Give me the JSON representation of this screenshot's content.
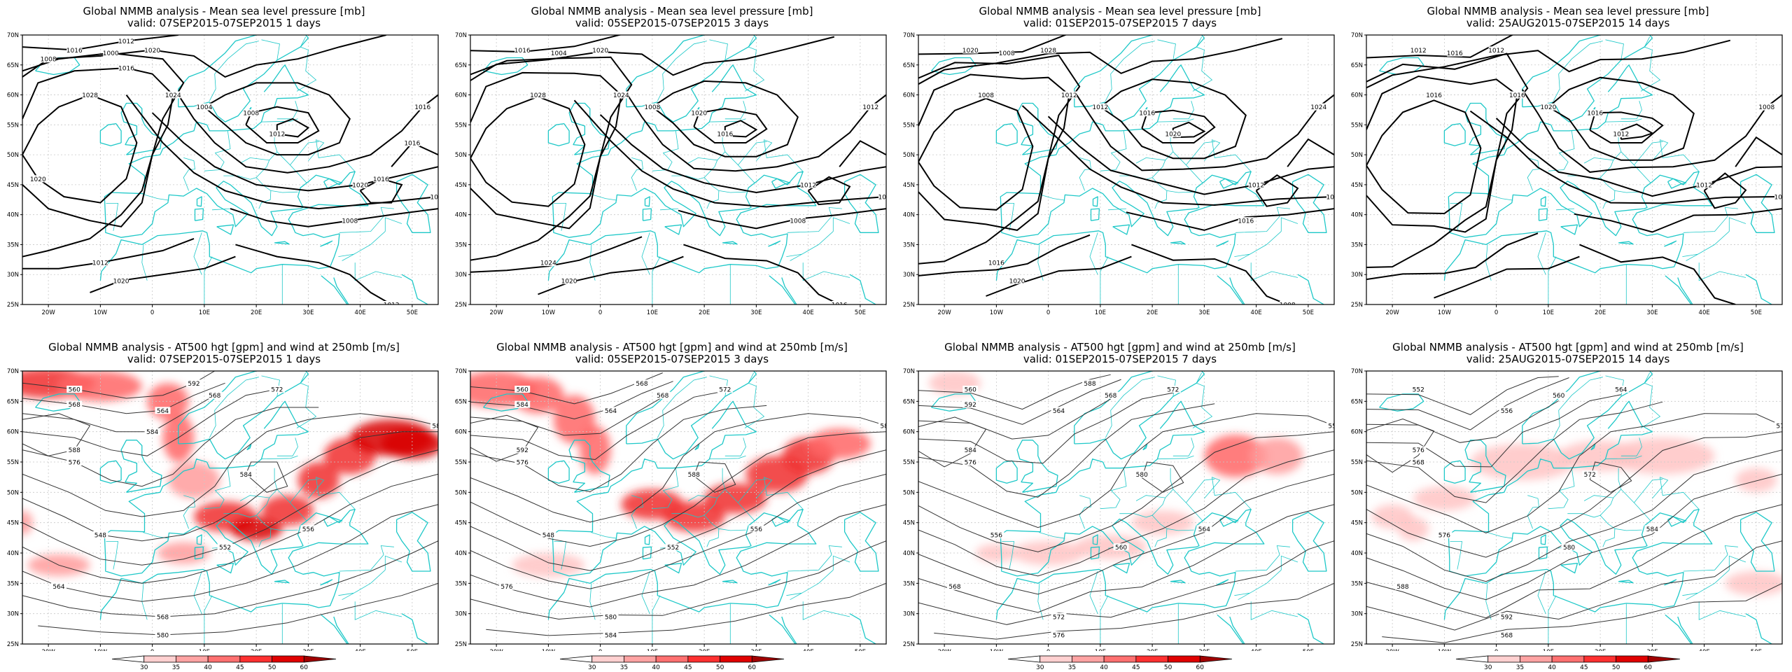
{
  "coast_color": "#1ec8c8",
  "contour_color": "#000000",
  "axes": {
    "lat_ticks": [
      "70N",
      "65N",
      "60N",
      "55N",
      "50N",
      "45N",
      "40N",
      "35N",
      "30N",
      "25N"
    ],
    "lon_ticks": [
      "20W",
      "10W",
      "0",
      "10E",
      "20E",
      "30E",
      "40E",
      "50E"
    ]
  },
  "legend": {
    "labels": [
      "30",
      "35",
      "40",
      "45",
      "50",
      "60"
    ],
    "colors": [
      "#ffffff",
      "#ffd0d0",
      "#ffa3a3",
      "#ff7070",
      "#ff3030",
      "#e00000",
      "#a00000"
    ]
  },
  "panels": [
    {
      "title": "Global NMMB analysis - Mean sea level pressure [mb]",
      "subtitle": "valid: 07SEP2015-07SEP2015   1 days",
      "labels": [
        "1016",
        "1020",
        "1024",
        "1028",
        "1000",
        "1004",
        "1008",
        "1012",
        "1016",
        "1020",
        "1024",
        "1008",
        "1012",
        "1012",
        "1020",
        "1016",
        "1016",
        "1012",
        "1008",
        "1016",
        "1020"
      ]
    },
    {
      "title": "Global NMMB analysis - Mean sea level pressure [mb]",
      "subtitle": "valid: 05SEP2015-07SEP2015   3 days",
      "labels": [
        "1016",
        "1020",
        "1024",
        "1028",
        "1004",
        "1008",
        "1020",
        "1016",
        "1012",
        "1012",
        "1012",
        "1008",
        "1016",
        "1024",
        "1020"
      ]
    },
    {
      "title": "Global NMMB analysis - Mean sea level pressure [mb]",
      "subtitle": "valid: 01SEP2015-07SEP2015   7 days",
      "labels": [
        "1020",
        "1028",
        "1012",
        "1008",
        "1008",
        "1012",
        "1016",
        "1020",
        "1024",
        "1012",
        "1016",
        "1016",
        "1008",
        "1016",
        "1020"
      ]
    },
    {
      "title": "Global NMMB analysis - Mean sea level pressure [mb]",
      "subtitle": "valid: 25AUG2015-07SEP2015   14 days",
      "labels": [
        "1012",
        "1012",
        "1016",
        "1016",
        "1016",
        "1020",
        "1016",
        "1012",
        "1008",
        "1012",
        "1016"
      ]
    },
    {
      "title": "Global NMMB analysis - AT500 hgt [gpm] and wind at 250mb [m/s]",
      "subtitle": "valid: 07SEP2015-07SEP2015   1 days",
      "labels": [
        "560",
        "564",
        "568",
        "572",
        "576",
        "580",
        "548",
        "552",
        "556",
        "564",
        "568",
        "580",
        "584",
        "588",
        "592",
        "568",
        "584"
      ]
    },
    {
      "title": "Global NMMB analysis - AT500 hgt [gpm] and wind at 250mb [m/s]",
      "subtitle": "valid: 05SEP2015-07SEP2015   3 days",
      "labels": [
        "560",
        "564",
        "568",
        "572",
        "576",
        "580",
        "548",
        "552",
        "556",
        "576",
        "580",
        "584",
        "588",
        "592",
        "568",
        "584"
      ]
    },
    {
      "title": "Global NMMB analysis - AT500 hgt [gpm] and wind at 250mb [m/s]",
      "subtitle": "valid: 01SEP2015-07SEP2015   7 days",
      "labels": [
        "560",
        "564",
        "568",
        "572",
        "576",
        "552",
        "556",
        "560",
        "564",
        "568",
        "572",
        "576",
        "580",
        "584",
        "588",
        "592"
      ]
    },
    {
      "title": "Global NMMB analysis - AT500 hgt [gpm] and wind at 250mb [m/s]",
      "subtitle": "valid: 25AUG2015-07SEP2015   14 days",
      "labels": [
        "552",
        "556",
        "560",
        "564",
        "568",
        "572",
        "576",
        "580",
        "584",
        "588",
        "592",
        "568",
        "572",
        "576"
      ]
    }
  ]
}
